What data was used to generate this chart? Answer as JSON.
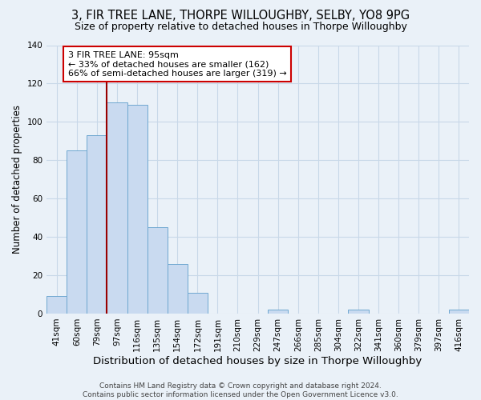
{
  "title": "3, FIR TREE LANE, THORPE WILLOUGHBY, SELBY, YO8 9PG",
  "subtitle": "Size of property relative to detached houses in Thorpe Willoughby",
  "xlabel": "Distribution of detached houses by size in Thorpe Willoughby",
  "ylabel": "Number of detached properties",
  "footer_lines": [
    "Contains HM Land Registry data © Crown copyright and database right 2024.",
    "Contains public sector information licensed under the Open Government Licence v3.0."
  ],
  "bin_labels": [
    "41sqm",
    "60sqm",
    "79sqm",
    "97sqm",
    "116sqm",
    "135sqm",
    "154sqm",
    "172sqm",
    "191sqm",
    "210sqm",
    "229sqm",
    "247sqm",
    "266sqm",
    "285sqm",
    "304sqm",
    "322sqm",
    "341sqm",
    "360sqm",
    "379sqm",
    "397sqm",
    "416sqm"
  ],
  "bar_heights": [
    9,
    85,
    93,
    110,
    109,
    45,
    26,
    11,
    0,
    0,
    0,
    2,
    0,
    0,
    0,
    2,
    0,
    0,
    0,
    0,
    2
  ],
  "bar_color": "#c9daf0",
  "bar_edge_color": "#6fa8d0",
  "grid_color": "#c8d8e8",
  "background_color": "#eaf1f8",
  "property_line_color": "#990000",
  "property_line_bar_index": 3,
  "annotation_text": "3 FIR TREE LANE: 95sqm\n← 33% of detached houses are smaller (162)\n66% of semi-detached houses are larger (319) →",
  "ylim": [
    0,
    140
  ],
  "title_fontsize": 10.5,
  "subtitle_fontsize": 9,
  "xlabel_fontsize": 9.5,
  "ylabel_fontsize": 8.5,
  "tick_fontsize": 7.5,
  "annotation_fontsize": 8,
  "footer_fontsize": 6.5
}
